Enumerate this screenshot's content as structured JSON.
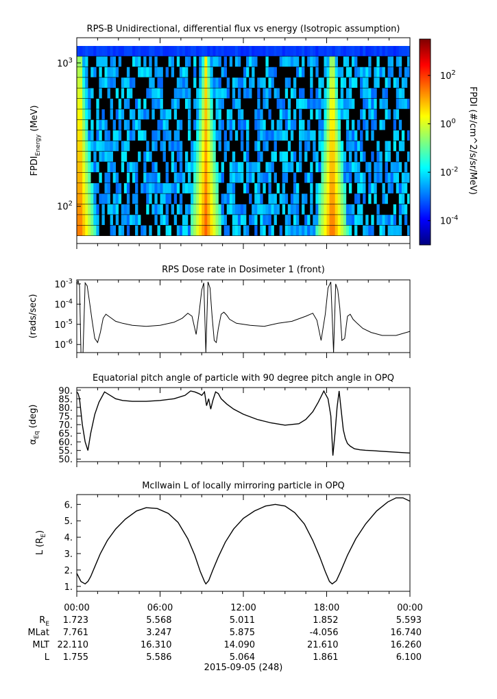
{
  "footer": {
    "date": "2015-09-05 (248)",
    "time_ticks": [
      "00:00",
      "06:00",
      "12:00",
      "18:00",
      "00:00"
    ],
    "rows": [
      {
        "label": "R",
        "sub": "E",
        "values": [
          "1.723",
          "5.568",
          "5.011",
          "1.852",
          "5.593"
        ]
      },
      {
        "label": "MLat",
        "sub": "",
        "values": [
          "7.761",
          "3.247",
          "5.875",
          "-4.056",
          "16.740"
        ]
      },
      {
        "label": "MLT",
        "sub": "",
        "values": [
          "22.110",
          "16.310",
          "14.090",
          "21.610",
          "16.260"
        ]
      },
      {
        "label": "L",
        "sub": "",
        "values": [
          "1.755",
          "5.586",
          "5.064",
          "1.861",
          "6.100"
        ]
      }
    ]
  },
  "chart_data": [
    {
      "type": "heatmap",
      "title": "RPS-B  Unidirectional, differential flux vs energy (Isotropic assumption)",
      "ylabel": "FPDI",
      "ylabel_sub": "Energy",
      "ylabel_unit": " (MeV)",
      "yscale": "log",
      "ylim": [
        55,
        1500
      ],
      "xlim_hours": [
        0,
        24
      ],
      "ytick_labels": [
        {
          "base": "10",
          "exp": "3",
          "value": 1000
        },
        {
          "base": "10",
          "exp": "2",
          "value": 100
        }
      ],
      "colorbar": {
        "label": "FPDI (#/cm^2/s/sr/MeV)",
        "scale": "log",
        "range_log10": [
          -5,
          3.5
        ],
        "ticks": [
          {
            "base": "10",
            "exp": "2",
            "log": 2
          },
          {
            "base": "10",
            "exp": "0",
            "log": 0
          },
          {
            "base": "10",
            "exp": "-2",
            "log": -2
          },
          {
            "base": "10",
            "exp": "-4",
            "log": -4
          }
        ],
        "colors": [
          "#00007f",
          "#0000ff",
          "#007fff",
          "#00ffff",
          "#7fff7f",
          "#ffff00",
          "#ff7f00",
          "#ff0000",
          "#7f0000"
        ]
      },
      "enhancement_hours": [
        0.2,
        9.3,
        18.4
      ],
      "background_color": "#000000"
    },
    {
      "type": "line",
      "title": "RPS  Dose rate in Dosimeter 1 (front)",
      "ylabel": "(rads/sec)",
      "yscale": "log",
      "ylim_log10": [
        -6.4,
        -2.8
      ],
      "ytick_labels": [
        {
          "base": "10",
          "exp": "-3",
          "log": -3
        },
        {
          "base": "10",
          "exp": "-4",
          "log": -4
        },
        {
          "base": "10",
          "exp": "-5",
          "log": -5
        },
        {
          "base": "10",
          "exp": "-6",
          "log": -6
        }
      ],
      "x_hours": [
        0,
        0.1,
        0.2,
        0.3,
        0.45,
        0.6,
        0.75,
        0.9,
        1.1,
        1.3,
        1.5,
        1.7,
        1.9,
        2.1,
        2.4,
        2.8,
        3.3,
        4,
        5,
        6,
        7,
        7.6,
        8,
        8.3,
        8.6,
        8.8,
        9,
        9.15,
        9.3,
        9.45,
        9.6,
        9.75,
        9.9,
        10.05,
        10.2,
        10.4,
        10.6,
        10.8,
        11,
        11.5,
        12.5,
        13.5,
        14.5,
        15.5,
        16.5,
        17,
        17.3,
        17.6,
        17.9,
        18.1,
        18.3,
        18.5,
        18.65,
        18.8,
        18.95,
        19.1,
        19.3,
        19.5,
        19.7,
        19.9,
        20.2,
        20.6,
        21.2,
        22,
        23,
        24
      ],
      "y_log10": [
        -3,
        -2.85,
        -3.1,
        -6.4,
        -6.4,
        -2.95,
        -3.1,
        -3.8,
        -4.8,
        -5.7,
        -5.9,
        -5.4,
        -4.7,
        -4.5,
        -4.65,
        -4.85,
        -4.95,
        -5.05,
        -5.1,
        -5.05,
        -4.9,
        -4.7,
        -4.45,
        -4.6,
        -5.5,
        -4.5,
        -3.3,
        -2.95,
        -6.4,
        -2.9,
        -3.2,
        -4.6,
        -5.8,
        -5.9,
        -5.2,
        -4.5,
        -4.4,
        -4.55,
        -4.75,
        -4.95,
        -5.05,
        -5.1,
        -4.95,
        -4.85,
        -4.6,
        -4.45,
        -4.8,
        -5.8,
        -4.5,
        -3.2,
        -2.9,
        -6.4,
        -3.0,
        -3.3,
        -4.2,
        -5.8,
        -5.7,
        -4.6,
        -4.5,
        -4.75,
        -4.95,
        -5.2,
        -5.4,
        -5.55,
        -5.55,
        -5.35
      ]
    },
    {
      "type": "line",
      "title": "Equatorial pitch angle of particle with 90 degree pitch angle in OPQ",
      "ylabel": "α",
      "ylabel_sub": "Eq",
      "ylabel_unit": " (deg)",
      "ylim": [
        48.5,
        91.5
      ],
      "yticks": [
        90,
        85,
        80,
        75,
        70,
        65,
        60,
        55,
        50
      ],
      "ytick_labels": [
        "90.",
        "85.",
        "80.",
        "75.",
        "70.",
        "65.",
        "60.",
        "55.",
        "50."
      ],
      "x_hours": [
        0,
        0.1,
        0.2,
        0.4,
        0.6,
        0.8,
        1.0,
        1.3,
        1.6,
        2.0,
        2.4,
        2.8,
        3.3,
        4.0,
        5.0,
        6.0,
        7.0,
        7.8,
        8.2,
        8.5,
        8.8,
        9.0,
        9.2,
        9.35,
        9.5,
        9.65,
        9.8,
        10.0,
        10.2,
        10.4,
        10.8,
        11.3,
        12.0,
        13.0,
        14.0,
        15.0,
        16.0,
        16.5,
        17.0,
        17.4,
        17.8,
        18.1,
        18.3,
        18.45,
        18.6,
        18.75,
        18.9,
        19.05,
        19.2,
        19.35,
        19.5,
        19.7,
        20.0,
        20.4,
        20.8,
        21.3,
        22.0,
        23.0,
        24.0
      ],
      "y": [
        89,
        88,
        85,
        70,
        60,
        55,
        65,
        76,
        83,
        89,
        87,
        85,
        84,
        83.5,
        83.5,
        84,
        85,
        87,
        89.5,
        89,
        88,
        87,
        89,
        81,
        85,
        79,
        84,
        89,
        88,
        85,
        82,
        79,
        76,
        73,
        71,
        69.7,
        70.5,
        73,
        77.5,
        83,
        89.5,
        85,
        75,
        52,
        65,
        80,
        89.5,
        78,
        67,
        62,
        59,
        57.5,
        56,
        55.4,
        55.1,
        54.9,
        54.5,
        54,
        53.5
      ]
    },
    {
      "type": "line",
      "title": "McIlwain L of locally mirroring particle in OPQ",
      "ylabel": "L (R",
      "ylabel_sub": "E",
      "ylabel_unit": ")",
      "ylim": [
        0.7,
        6.6
      ],
      "yticks": [
        6,
        5,
        4,
        3,
        2,
        1
      ],
      "ytick_labels": [
        "6.",
        "5.",
        "4.",
        "3.",
        "2.",
        "1."
      ],
      "x_hours": [
        0,
        0.3,
        0.6,
        0.8,
        1,
        1.3,
        1.7,
        2.2,
        2.8,
        3.5,
        4.3,
        5,
        5.8,
        6.6,
        7.3,
        8,
        8.5,
        8.9,
        9.2,
        9.3,
        9.5,
        9.8,
        10.2,
        10.7,
        11.3,
        12,
        12.8,
        13.6,
        14.3,
        15,
        15.7,
        16.4,
        17,
        17.5,
        17.9,
        18.2,
        18.4,
        18.7,
        19,
        19.5,
        20.1,
        20.8,
        21.6,
        22.4,
        23,
        23.5,
        24
      ],
      "y": [
        1.8,
        1.3,
        1.15,
        1.3,
        1.6,
        2.2,
        3,
        3.8,
        4.5,
        5.1,
        5.6,
        5.8,
        5.75,
        5.45,
        4.9,
        3.9,
        2.9,
        1.9,
        1.3,
        1.15,
        1.35,
        2.0,
        2.8,
        3.7,
        4.5,
        5.15,
        5.6,
        5.9,
        6.0,
        5.9,
        5.5,
        4.8,
        3.8,
        2.8,
        1.9,
        1.3,
        1.15,
        1.35,
        1.9,
        2.9,
        3.9,
        4.8,
        5.6,
        6.15,
        6.4,
        6.4,
        6.2
      ]
    }
  ]
}
